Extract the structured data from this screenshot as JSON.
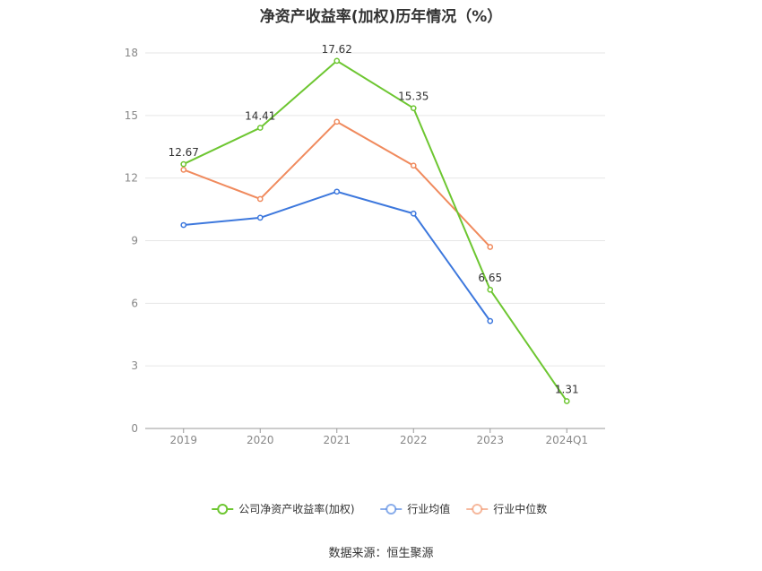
{
  "chart_data": {
    "type": "line",
    "title": "净资产收益率(加权)历年情况（%）",
    "categories": [
      "2019",
      "2020",
      "2021",
      "2022",
      "2023",
      "2024Q1"
    ],
    "ylim": [
      0,
      18
    ],
    "yticks": [
      0,
      3,
      6,
      9,
      12,
      15,
      18
    ],
    "grid": true,
    "legend_position": "bottom",
    "series": [
      {
        "name": "公司净资产收益率(加权)",
        "color": "#6dc631",
        "values": [
          12.67,
          14.41,
          17.62,
          15.35,
          6.65,
          1.31
        ],
        "labels": [
          "12.67",
          "14.41",
          "17.62",
          "15.35",
          "6.65",
          "1.31"
        ]
      },
      {
        "name": "行业均值",
        "color": "#3d78dd",
        "values": [
          9.75,
          10.1,
          11.35,
          10.3,
          5.15,
          null
        ]
      },
      {
        "name": "行业中位数",
        "color": "#f08a5d",
        "values": [
          12.4,
          11.0,
          14.7,
          12.6,
          8.7,
          null
        ]
      }
    ]
  },
  "source": "数据来源：恒生聚源"
}
